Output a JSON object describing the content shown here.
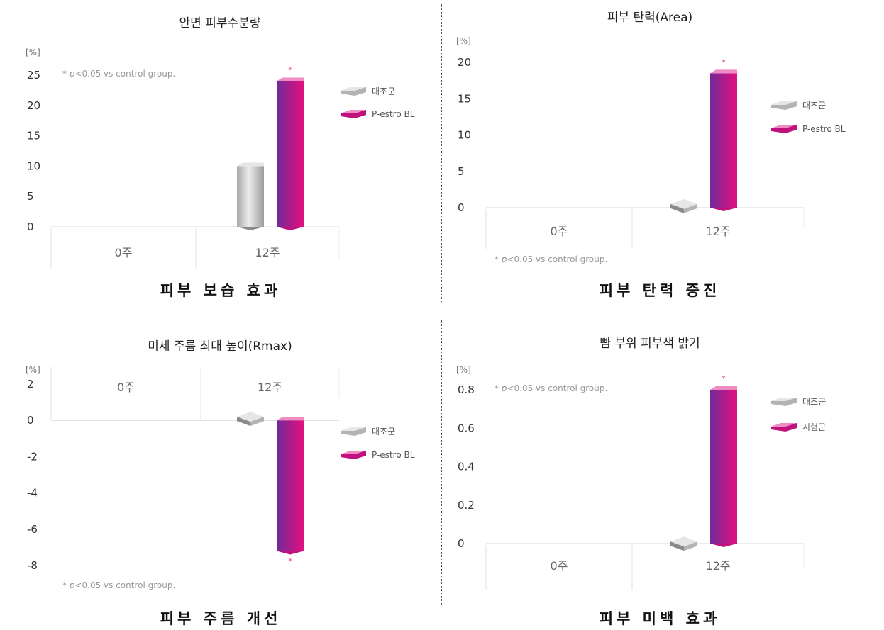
{
  "colors": {
    "control_front": "#b3b3b3",
    "control_top": "#e6e6e6",
    "control_side": "#8a8a8a",
    "test_front_left": "#6e2a9a",
    "test_front_right": "#e2117f",
    "test_top": "#f08cc4",
    "test_side": "#c0127e",
    "axis_text": "#333333",
    "note_text": "#999999",
    "star": "#e2307f"
  },
  "captions": [
    "피부 보습 효과",
    "피부 탄력 증진",
    "피부 주름 개선",
    "피부 미백 효과"
  ],
  "chart_data": [
    {
      "type": "bar",
      "title": "안면 피부수분량",
      "unit": "[%]",
      "categories": [
        "0주",
        "12주"
      ],
      "yticks": [
        "25",
        "20",
        "15",
        "10",
        "5",
        "0"
      ],
      "ylim": [
        0,
        25
      ],
      "series": [
        {
          "name": "대조군",
          "values": [
            0,
            10
          ]
        },
        {
          "name": "P-estro BL",
          "values": [
            0,
            24
          ]
        }
      ],
      "significance": "*",
      "note": "p<0.05 vs control group.",
      "note_prefix": "* ",
      "note_italic": "p",
      "note_rest": "<0.05 vs control group."
    },
    {
      "type": "bar",
      "title": "피부 탄력(Area)",
      "unit": "[%]",
      "categories": [
        "0주",
        "12주"
      ],
      "yticks": [
        "20",
        "15",
        "10",
        "5",
        "0"
      ],
      "ylim": [
        0,
        20
      ],
      "series": [
        {
          "name": "대조군",
          "values": [
            0,
            0.5
          ]
        },
        {
          "name": "P-estro BL",
          "values": [
            0,
            18.5
          ]
        }
      ],
      "significance": "*",
      "note": "p<0.05 vs control group.",
      "note_prefix": "* ",
      "note_italic": "p",
      "note_rest": "<0.05 vs control group."
    },
    {
      "type": "bar",
      "title": "미세 주름 최대 높이(Rmax)",
      "unit": "[%]",
      "categories": [
        "0주",
        "12주"
      ],
      "yticks": [
        "2",
        "0",
        "-2",
        "-4",
        "-6",
        "-8"
      ],
      "ylim": [
        -8,
        2
      ],
      "series": [
        {
          "name": "대조군",
          "values": [
            0,
            0.2
          ]
        },
        {
          "name": "P-estro BL",
          "values": [
            0,
            -7.2
          ]
        }
      ],
      "significance": "*",
      "note": "p<0.05 vs control group.",
      "note_prefix": "* ",
      "note_italic": "p",
      "note_rest": "<0.05 vs control group."
    },
    {
      "type": "bar",
      "title": "뺨 부위 피부색 밝기",
      "unit": "[%]",
      "categories": [
        "0주",
        "12주"
      ],
      "yticks": [
        "0.8",
        "0.6",
        "0.4",
        "0.2",
        "0"
      ],
      "ylim": [
        0,
        0.8
      ],
      "series": [
        {
          "name": "대조군",
          "values": [
            0,
            0.01
          ]
        },
        {
          "name": "시험군",
          "values": [
            0,
            0.8
          ]
        }
      ],
      "significance": "*",
      "note": "p<0.05 vs control group.",
      "note_prefix": "* ",
      "note_italic": "p",
      "note_rest": "<0.05 vs control group."
    }
  ]
}
